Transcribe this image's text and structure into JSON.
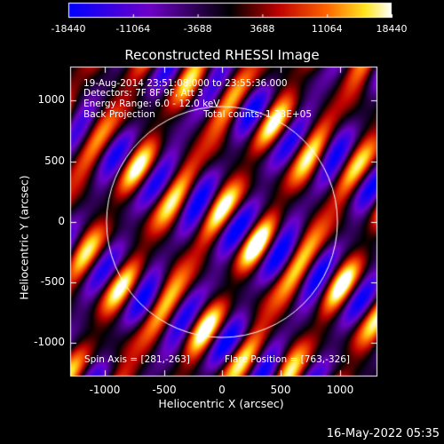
{
  "colorbar": {
    "ticks": [
      "-18440",
      "-11064",
      "-3688",
      "3688",
      "11064",
      "18440"
    ],
    "colormap": "blue-purple-red-yellow-white"
  },
  "plot": {
    "title": "Reconstructed RHESSI Image",
    "info_lines": [
      "19-Aug-2014 23:51:08.000 to 23:55:36.000",
      "Detectors: 7F 8F 9F, Att 3",
      "Energy Range: 6.0 - 12.0 keV",
      "Back Projection",
      "Total counts: 1.33E+05"
    ],
    "x_ticks": [
      "-1000",
      "-500",
      "0",
      "500",
      "1000"
    ],
    "y_ticks": [
      "1000",
      "500",
      "0",
      "-500",
      "-1000"
    ],
    "xlabel": "Heliocentric X (arcsec)",
    "ylabel": "Heliocentric Y (arcsec)",
    "spin_axis": "Spin Axis = [281,-263]",
    "flare_position": "Flare Position = [763,-326]"
  },
  "footer": {
    "date": "16-May-2022 05:35"
  }
}
